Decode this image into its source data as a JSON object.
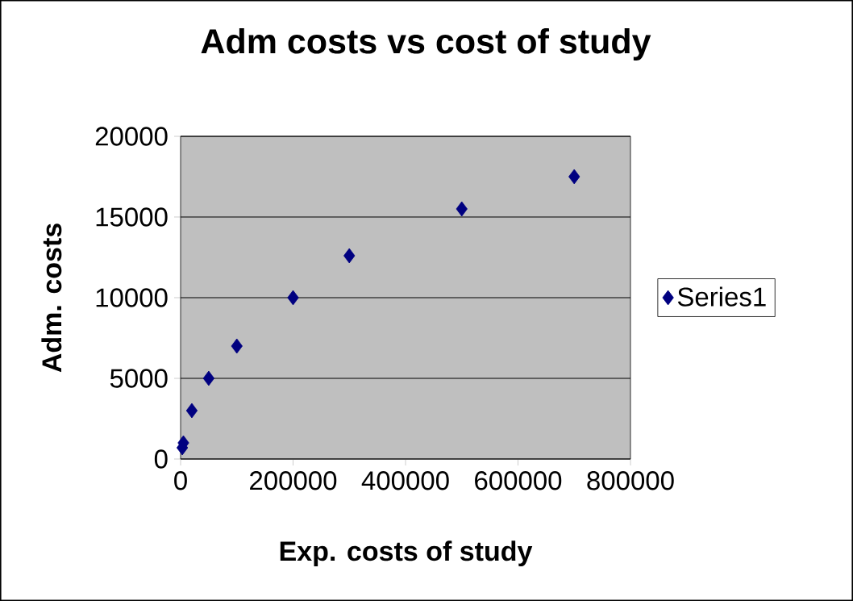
{
  "chart_data": {
    "type": "scatter",
    "title": "Adm costs vs cost of study",
    "xlabel": "Exp. costs of study",
    "ylabel": "Adm. costs",
    "x": [
      3000,
      5000,
      20000,
      50000,
      100000,
      200000,
      300000,
      500000,
      700000
    ],
    "series": [
      {
        "name": "Series1",
        "color": "#000080",
        "values": [
          700,
          1000,
          3000,
          5000,
          7000,
          10000,
          12600,
          15500,
          17500
        ]
      }
    ],
    "xlim": [
      0,
      800000
    ],
    "xticks": [
      0,
      200000,
      400000,
      600000,
      800000
    ],
    "ylim": [
      0,
      20000
    ],
    "yticks": [
      0,
      5000,
      10000,
      15000,
      20000
    ],
    "grid": "y",
    "legend": "right",
    "marker": "diamond"
  }
}
